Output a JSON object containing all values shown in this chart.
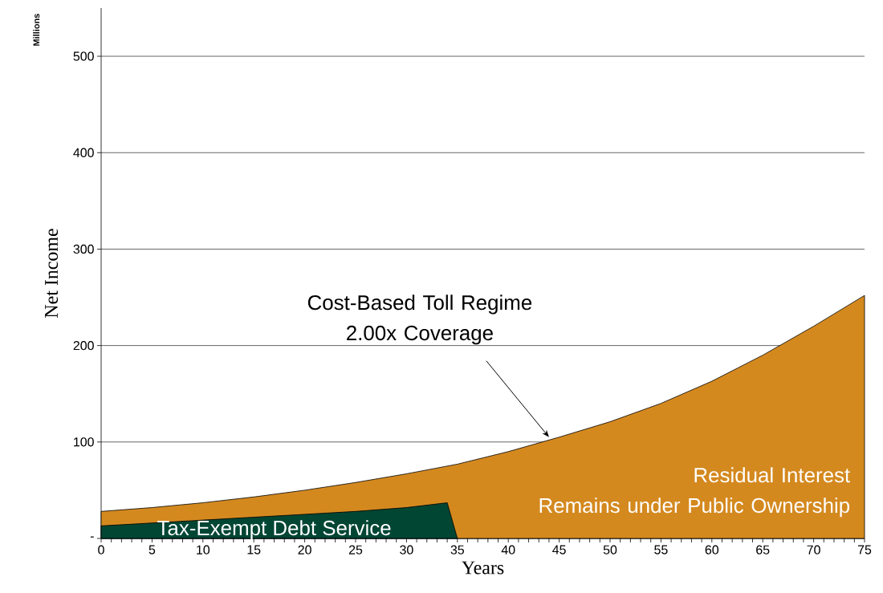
{
  "chart_data": {
    "type": "area",
    "xlabel": "Years",
    "ylabel": "Net Income",
    "annotations": [
      "Millions",
      {
        "text": "Cost-Based Toll Regime\n2.00x Coverage",
        "x": 44,
        "y": 105
      }
    ],
    "series": [
      {
        "name": "Residual Interest\nRemains under Public Ownership",
        "color": "#d4891f",
        "x": [
          0,
          5,
          10,
          15,
          20,
          25,
          30,
          35,
          40,
          45,
          50,
          55,
          60,
          65,
          70,
          75
        ],
        "values": [
          28,
          32,
          37,
          43,
          50,
          58,
          67,
          77,
          90,
          105,
          121,
          140,
          163,
          190,
          220,
          252
        ]
      },
      {
        "name": "Tax-Exempt Debt Service",
        "color": "#004633",
        "x": [
          0,
          5,
          10,
          15,
          20,
          25,
          30,
          34,
          35
        ],
        "values": [
          13,
          16,
          19,
          22,
          25,
          28,
          32,
          37,
          0
        ]
      }
    ],
    "xlim": [
      0,
      75
    ],
    "xticks": [
      0,
      5,
      10,
      15,
      20,
      25,
      30,
      35,
      40,
      45,
      50,
      55,
      60,
      65,
      70,
      75
    ],
    "ylim": [
      0,
      550
    ],
    "yticks": [
      {
        "value": 0,
        "label": "-"
      },
      100,
      200,
      300,
      400,
      500
    ],
    "grid": "y"
  }
}
